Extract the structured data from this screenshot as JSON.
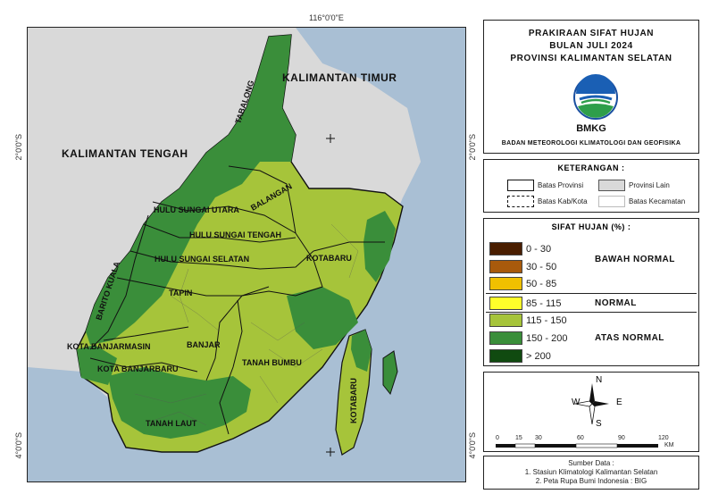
{
  "coordinates": {
    "top": "116°0'0\"E",
    "left_upper": "2°0'0\"S",
    "left_lower": "4°0'0\"S",
    "right_upper": "2°0'0\"S",
    "right_lower": "4°0'0\"S"
  },
  "map_labels": {
    "kaltim": "KALIMANTAN TIMUR",
    "kalteng": "KALIMANTAN TENGAH",
    "tabalong": "TABALONG",
    "balangan": "BALANGAN",
    "hsu": "HULU SUNGAI UTARA",
    "hst": "HULU SUNGAI TENGAH",
    "hss": "HULU SUNGAI SELATAN",
    "tapin": "TAPIN",
    "barito_kuala": "BARITO KUALA",
    "kota_banjarmasin": "KOTA BANJARMASIN",
    "banjar": "BANJAR",
    "kota_banjarbaru": "KOTA BANJARBARU",
    "tanah_laut": "TANAH LAUT",
    "tanah_bumbu": "TANAH BUMBU",
    "kotabaru_main": "KOTABARU",
    "kotabaru_island": "KOTABARU"
  },
  "title": {
    "line1": "PRAKIRAAN SIFAT HUJAN",
    "line2": "BULAN JULI 2024",
    "line3": "PROVINSI KALIMANTAN SELATAN",
    "logo_text": "BMKG",
    "agency": "BADAN METEOROLOGI KLIMATOLOGI DAN GEOFISIKA"
  },
  "keterangan": {
    "heading": "KETERANGAN :",
    "items": {
      "batas_provinsi": "Batas Provinsi",
      "provinsi_lain": "Provinsi Lain",
      "batas_kabkota": "Batas Kab/Kota",
      "batas_kecamatan": "Batas Kecamatan"
    }
  },
  "legend": {
    "heading": "SIFAT HUJAN (%) :",
    "classes": [
      {
        "range": "0 - 30",
        "color": "#4a1e00"
      },
      {
        "range": "30 - 50",
        "color": "#a85a0c"
      },
      {
        "range": "50 - 85",
        "color": "#f0c000"
      },
      {
        "range": "85 - 115",
        "color": "#ffff2a"
      },
      {
        "range": "115 - 150",
        "color": "#a6c43a"
      },
      {
        "range": "150 - 200",
        "color": "#3a8e3a"
      },
      {
        "range": "> 200",
        "color": "#104a10"
      }
    ],
    "categories": {
      "below": "BAWAH NORMAL",
      "normal": "NORMAL",
      "above": "ATAS NORMAL"
    }
  },
  "compass": {
    "n": "N",
    "s": "S",
    "e": "E",
    "w": "W"
  },
  "scale": {
    "ticks": [
      "0",
      "15",
      "30",
      "60",
      "90",
      "120"
    ],
    "unit": "KM"
  },
  "source": {
    "heading": "Sumber Data :",
    "line1": "1. Stasiun Klimatologi Kalimantan Selatan",
    "line2": "2. Peta Rupa Bumi Indonesia : BIG"
  },
  "colors": {
    "sea": "#a9bfd4",
    "other_province": "#d9d9d9",
    "class_115_150": "#a6c43a",
    "class_150_200": "#3a8e3a"
  }
}
